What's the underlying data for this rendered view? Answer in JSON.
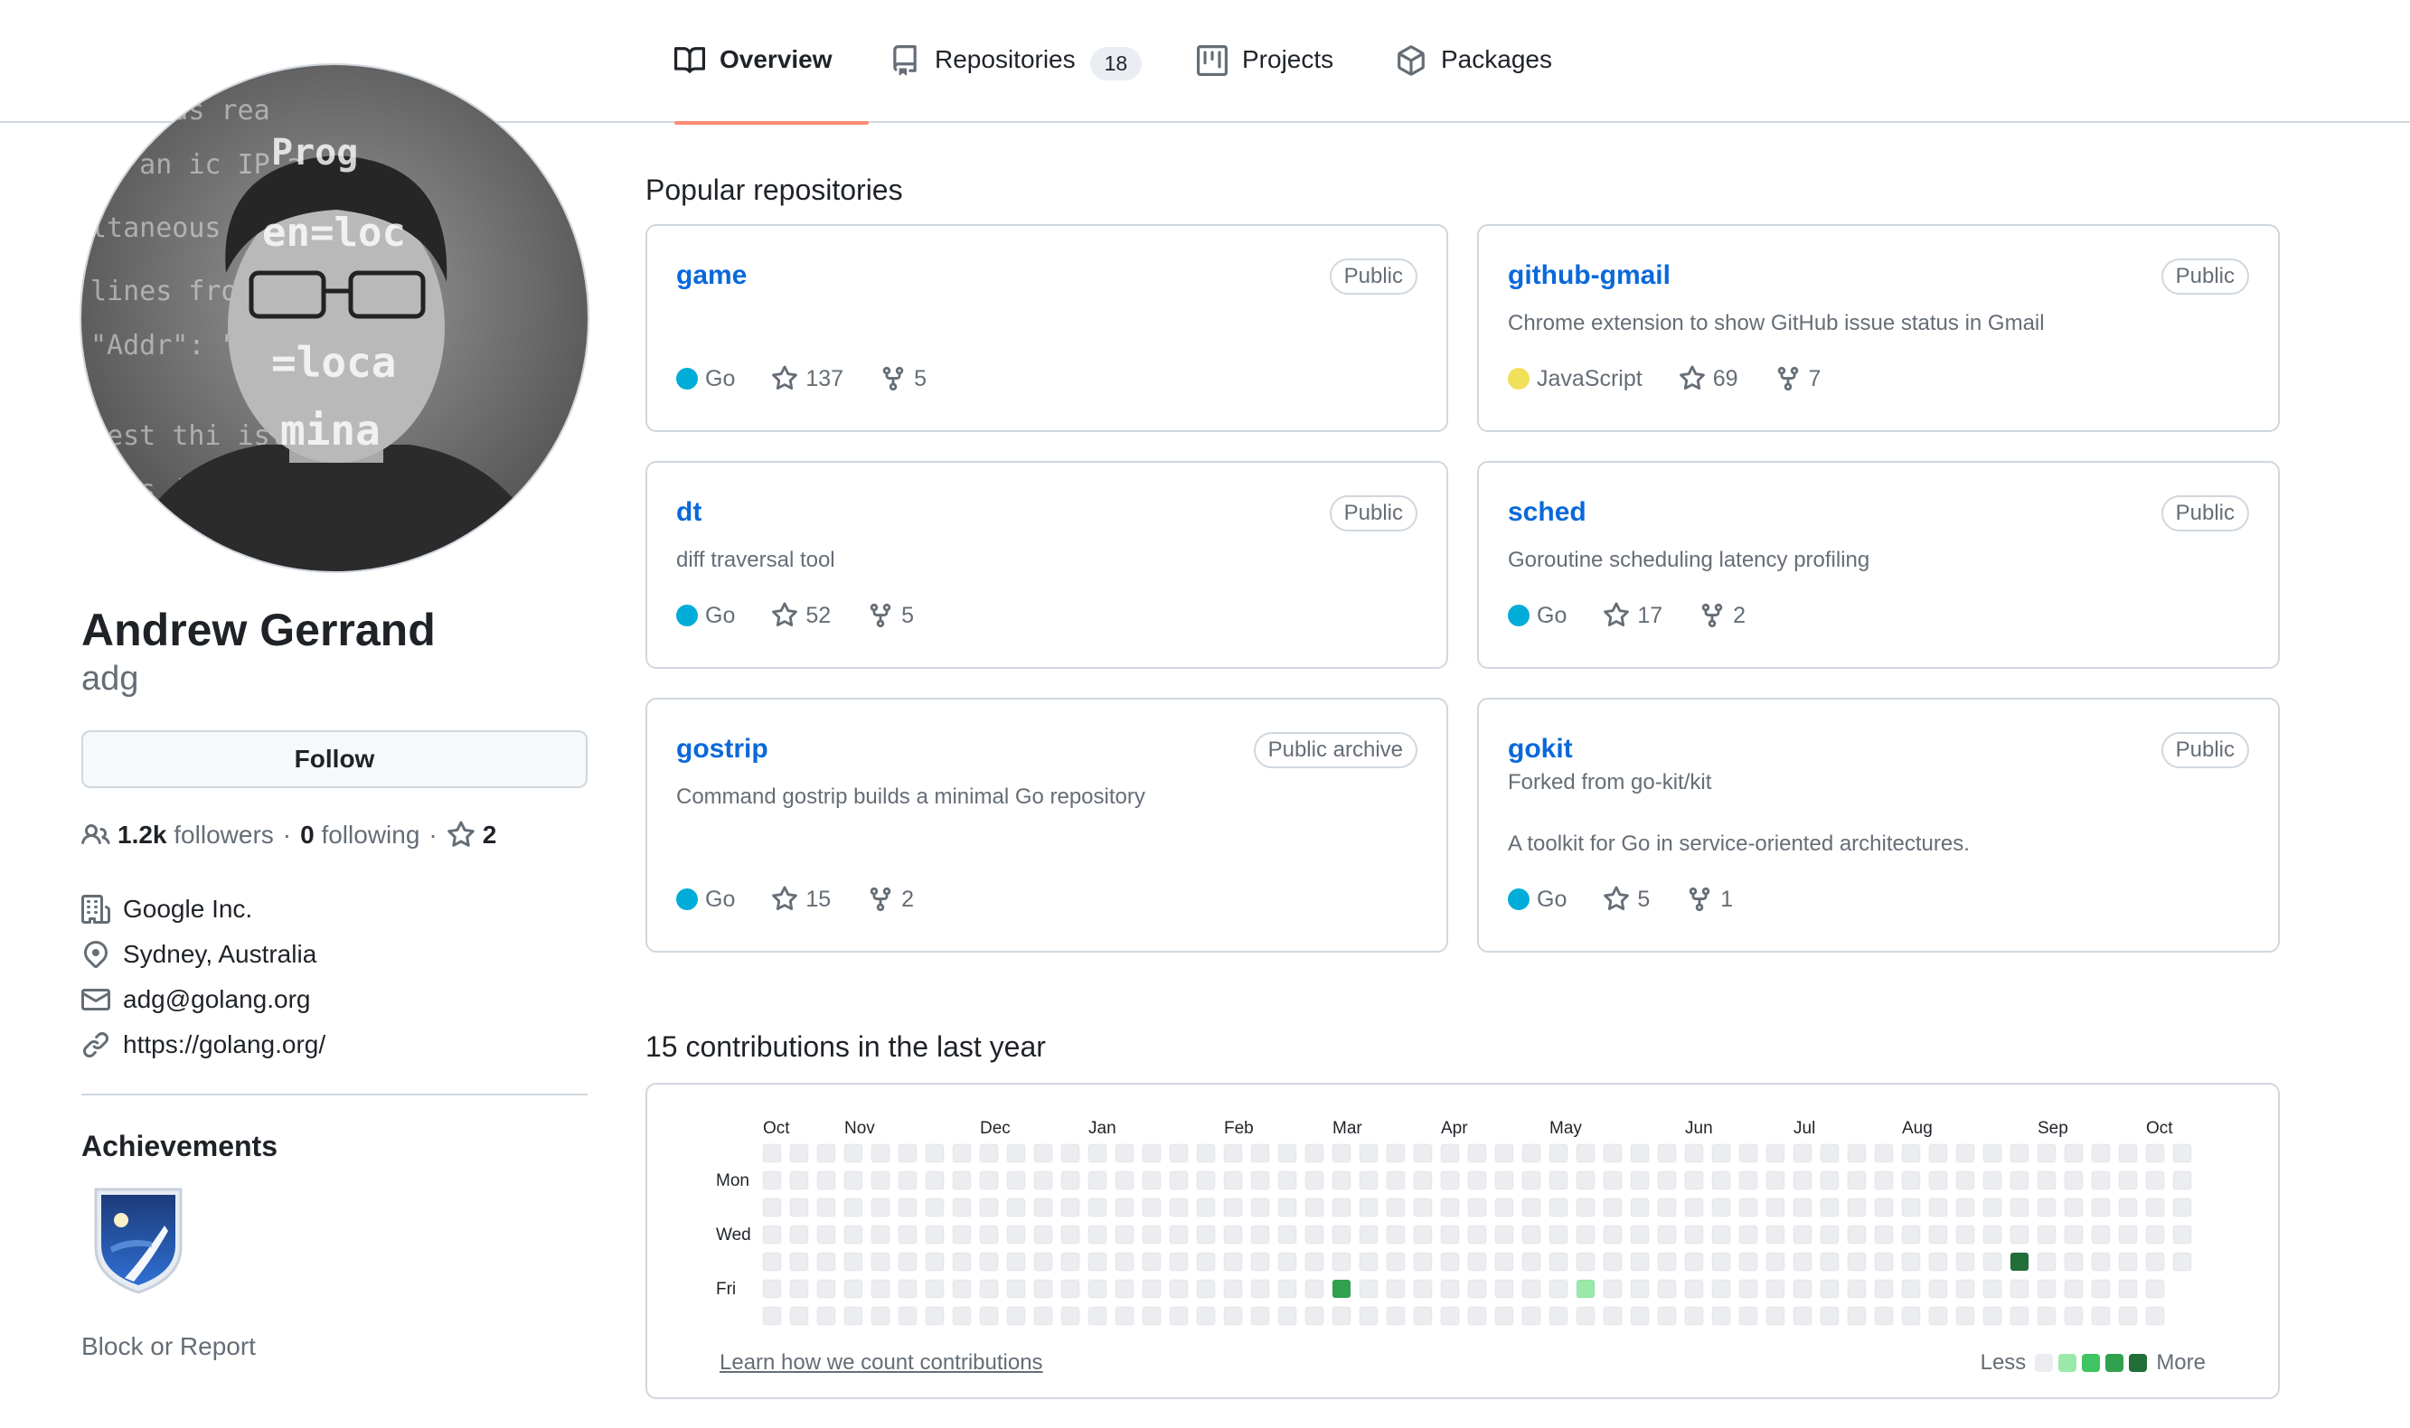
{
  "nav": {
    "tabs": [
      {
        "label": "Overview",
        "icon": "book-icon",
        "active": true
      },
      {
        "label": "Repositories",
        "icon": "repo-icon",
        "count": "18"
      },
      {
        "label": "Projects",
        "icon": "project-icon"
      },
      {
        "label": "Packages",
        "icon": "package-icon"
      }
    ]
  },
  "profile": {
    "name": "Andrew Gerrand",
    "username": "adg",
    "follow_label": "Follow",
    "followers_count": "1.2k",
    "followers_label": "followers",
    "following_count": "0",
    "following_label": "following",
    "stars_count": "2",
    "company": "Google Inc.",
    "location": "Sydney, Australia",
    "email": "adg@golang.org",
    "website": "https://golang.org/",
    "achievements_title": "Achievements",
    "block_report": "Block or Report"
  },
  "popular": {
    "title": "Popular repositories",
    "repos": [
      {
        "name": "game",
        "visibility": "Public",
        "description": "",
        "language": "Go",
        "language_color": "#00ADD8",
        "stars": "137",
        "forks": "5"
      },
      {
        "name": "github-gmail",
        "visibility": "Public",
        "description": "Chrome extension to show GitHub issue status in Gmail",
        "language": "JavaScript",
        "language_color": "#f1e05a",
        "stars": "69",
        "forks": "7"
      },
      {
        "name": "dt",
        "visibility": "Public",
        "description": "diff traversal tool",
        "language": "Go",
        "language_color": "#00ADD8",
        "stars": "52",
        "forks": "5"
      },
      {
        "name": "sched",
        "visibility": "Public",
        "description": "Goroutine scheduling latency profiling",
        "language": "Go",
        "language_color": "#00ADD8",
        "stars": "17",
        "forks": "2"
      },
      {
        "name": "gostrip",
        "visibility": "Public archive",
        "description": "Command gostrip builds a minimal Go repository",
        "language": "Go",
        "language_color": "#00ADD8",
        "stars": "15",
        "forks": "2"
      },
      {
        "name": "gokit",
        "visibility": "Public",
        "forked_from": "Forked from go-kit/kit",
        "description": "A toolkit for Go in service-oriented architectures.",
        "language": "Go",
        "language_color": "#00ADD8",
        "stars": "5",
        "forks": "1"
      }
    ]
  },
  "contributions": {
    "title": "15 contributions in the last year",
    "months": [
      "Oct",
      "Nov",
      "Dec",
      "Jan",
      "Feb",
      "Mar",
      "Apr",
      "May",
      "Jun",
      "Jul",
      "Aug",
      "Sep",
      "Oct"
    ],
    "days": [
      "Mon",
      "Wed",
      "Fri"
    ],
    "learn": "Learn how we count contributions",
    "less": "Less",
    "more": "More",
    "colors": [
      "#ebedf0",
      "#9be9a8",
      "#40c463",
      "#30a14e",
      "#216e39"
    ],
    "highlights": [
      {
        "week": 21,
        "day": 5,
        "level": 3
      },
      {
        "week": 30,
        "day": 5,
        "level": 1
      },
      {
        "week": 46,
        "day": 4,
        "level": 4
      }
    ]
  }
}
